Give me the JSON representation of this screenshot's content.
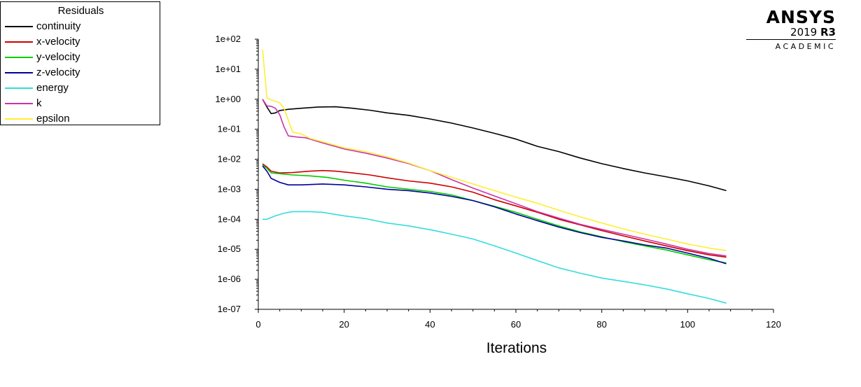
{
  "logo": {
    "brand": "ANSYS",
    "version": "2019",
    "release": "R3",
    "edition": "ACADEMIC"
  },
  "legend": {
    "title": "Residuals"
  },
  "chart_data": {
    "type": "line",
    "title": "",
    "xlabel": "Iterations",
    "ylabel": "",
    "xlim": [
      0,
      120
    ],
    "ylim": [
      1e-07,
      100
    ],
    "yscale": "log",
    "grid": false,
    "legend_position": "top-left",
    "xticks": [
      "0",
      "20",
      "40",
      "60",
      "80",
      "100",
      "120"
    ],
    "xtick_values": [
      0,
      20,
      40,
      60,
      80,
      100,
      120
    ],
    "yticks": [
      "1e-07",
      "1e-06",
      "1e-05",
      "1e-04",
      "1e-03",
      "1e-02",
      "1e-01",
      "1e+00",
      "1e+01",
      "1e+02"
    ],
    "ytick_values": [
      1e-07,
      1e-06,
      1e-05,
      0.0001,
      0.001,
      0.01,
      0.1,
      1,
      10,
      100
    ],
    "series": [
      {
        "name": "continuity",
        "color": "#000000",
        "points": [
          [
            1,
            1.0
          ],
          [
            2,
            0.55
          ],
          [
            3,
            0.33
          ],
          [
            4,
            0.35
          ],
          [
            5,
            0.42
          ],
          [
            7,
            0.46
          ],
          [
            10,
            0.5
          ],
          [
            14,
            0.55
          ],
          [
            18,
            0.56
          ],
          [
            22,
            0.5
          ],
          [
            26,
            0.43
          ],
          [
            30,
            0.35
          ],
          [
            35,
            0.29
          ],
          [
            40,
            0.22
          ],
          [
            45,
            0.16
          ],
          [
            50,
            0.11
          ],
          [
            55,
            0.073
          ],
          [
            60,
            0.047
          ],
          [
            65,
            0.027
          ],
          [
            70,
            0.018
          ],
          [
            75,
            0.011
          ],
          [
            80,
            0.0071
          ],
          [
            85,
            0.0049
          ],
          [
            90,
            0.0035
          ],
          [
            95,
            0.0026
          ],
          [
            100,
            0.0019
          ],
          [
            105,
            0.0013
          ],
          [
            109,
            0.0009
          ]
        ]
      },
      {
        "name": "x-velocity",
        "color": "#cc0000",
        "points": [
          [
            1,
            0.007
          ],
          [
            2,
            0.0055
          ],
          [
            3,
            0.004
          ],
          [
            5,
            0.0035
          ],
          [
            8,
            0.0036
          ],
          [
            12,
            0.004
          ],
          [
            15,
            0.0042
          ],
          [
            18,
            0.004
          ],
          [
            22,
            0.0035
          ],
          [
            26,
            0.003
          ],
          [
            30,
            0.0024
          ],
          [
            35,
            0.0019
          ],
          [
            40,
            0.0016
          ],
          [
            45,
            0.0012
          ],
          [
            50,
            0.0008
          ],
          [
            55,
            0.00045
          ],
          [
            60,
            0.00028
          ],
          [
            65,
            0.00017
          ],
          [
            70,
            0.0001
          ],
          [
            75,
            6.5e-05
          ],
          [
            80,
            4.2e-05
          ],
          [
            85,
            2.8e-05
          ],
          [
            90,
            1.9e-05
          ],
          [
            95,
            1.3e-05
          ],
          [
            100,
            9e-06
          ],
          [
            105,
            6.5e-06
          ],
          [
            109,
            5.5e-06
          ]
        ]
      },
      {
        "name": "y-velocity",
        "color": "#00cc00",
        "points": [
          [
            1,
            0.0065
          ],
          [
            2,
            0.005
          ],
          [
            3,
            0.0035
          ],
          [
            5,
            0.0033
          ],
          [
            8,
            0.003
          ],
          [
            12,
            0.0028
          ],
          [
            16,
            0.0025
          ],
          [
            20,
            0.002
          ],
          [
            25,
            0.0016
          ],
          [
            30,
            0.0012
          ],
          [
            35,
            0.001
          ],
          [
            40,
            0.00085
          ],
          [
            45,
            0.00065
          ],
          [
            50,
            0.00042
          ],
          [
            55,
            0.00027
          ],
          [
            60,
            0.00017
          ],
          [
            65,
            0.0001
          ],
          [
            70,
            6e-05
          ],
          [
            75,
            3.8e-05
          ],
          [
            80,
            2.6e-05
          ],
          [
            85,
            1.8e-05
          ],
          [
            90,
            1.3e-05
          ],
          [
            95,
            9.5e-06
          ],
          [
            100,
            6.5e-06
          ],
          [
            105,
            4.5e-06
          ],
          [
            109,
            3.5e-06
          ]
        ]
      },
      {
        "name": "z-velocity",
        "color": "#000099",
        "points": [
          [
            1,
            0.006
          ],
          [
            2,
            0.004
          ],
          [
            3,
            0.0023
          ],
          [
            5,
            0.0017
          ],
          [
            7,
            0.0014
          ],
          [
            10,
            0.0014
          ],
          [
            15,
            0.0015
          ],
          [
            20,
            0.0014
          ],
          [
            25,
            0.0012
          ],
          [
            30,
            0.001
          ],
          [
            35,
            0.0009
          ],
          [
            40,
            0.00075
          ],
          [
            45,
            0.00058
          ],
          [
            50,
            0.00042
          ],
          [
            55,
            0.00026
          ],
          [
            60,
            0.00015
          ],
          [
            65,
            9e-05
          ],
          [
            70,
            5.5e-05
          ],
          [
            75,
            3.6e-05
          ],
          [
            80,
            2.5e-05
          ],
          [
            85,
            1.9e-05
          ],
          [
            90,
            1.4e-05
          ],
          [
            95,
            1.1e-05
          ],
          [
            100,
            7.5e-06
          ],
          [
            105,
            5e-06
          ],
          [
            109,
            3.3e-06
          ]
        ]
      },
      {
        "name": "energy",
        "color": "#33dddd",
        "points": [
          [
            1,
            0.0001
          ],
          [
            2,
            0.0001
          ],
          [
            4,
            0.00013
          ],
          [
            6,
            0.00016
          ],
          [
            8,
            0.00018
          ],
          [
            12,
            0.00018
          ],
          [
            15,
            0.00017
          ],
          [
            20,
            0.00013
          ],
          [
            25,
            0.000105
          ],
          [
            30,
            7.5e-05
          ],
          [
            35,
            6e-05
          ],
          [
            40,
            4.5e-05
          ],
          [
            45,
            3.2e-05
          ],
          [
            50,
            2.2e-05
          ],
          [
            55,
            1.3e-05
          ],
          [
            60,
            7.5e-06
          ],
          [
            65,
            4.2e-06
          ],
          [
            70,
            2.4e-06
          ],
          [
            75,
            1.6e-06
          ],
          [
            80,
            1.1e-06
          ],
          [
            85,
            8.5e-07
          ],
          [
            90,
            6.5e-07
          ],
          [
            95,
            4.8e-07
          ],
          [
            100,
            3.3e-07
          ],
          [
            105,
            2.3e-07
          ],
          [
            109,
            1.6e-07
          ]
        ]
      },
      {
        "name": "k",
        "color": "#cc33aa",
        "points": [
          [
            1,
            1.0
          ],
          [
            2,
            0.6
          ],
          [
            3,
            0.58
          ],
          [
            4,
            0.5
          ],
          [
            5,
            0.3
          ],
          [
            6,
            0.12
          ],
          [
            7,
            0.06
          ],
          [
            9,
            0.055
          ],
          [
            11,
            0.052
          ],
          [
            15,
            0.035
          ],
          [
            20,
            0.022
          ],
          [
            25,
            0.016
          ],
          [
            30,
            0.011
          ],
          [
            35,
            0.0072
          ],
          [
            40,
            0.0042
          ],
          [
            45,
            0.0021
          ],
          [
            50,
            0.0011
          ],
          [
            55,
            0.0006
          ],
          [
            60,
            0.00033
          ],
          [
            65,
            0.00018
          ],
          [
            70,
            0.00011
          ],
          [
            75,
            6.8e-05
          ],
          [
            80,
            4.6e-05
          ],
          [
            85,
            3.2e-05
          ],
          [
            90,
            2.2e-05
          ],
          [
            95,
            1.5e-05
          ],
          [
            100,
            1e-05
          ],
          [
            105,
            7.2e-06
          ],
          [
            109,
            6e-06
          ]
        ]
      },
      {
        "name": "epsilon",
        "color": "#ffee33",
        "points": [
          [
            1,
            45
          ],
          [
            2,
            1.1
          ],
          [
            3,
            0.95
          ],
          [
            4,
            0.85
          ],
          [
            5,
            0.75
          ],
          [
            6,
            0.5
          ],
          [
            7,
            0.2
          ],
          [
            8,
            0.08
          ],
          [
            10,
            0.07
          ],
          [
            12,
            0.05
          ],
          [
            15,
            0.038
          ],
          [
            20,
            0.024
          ],
          [
            25,
            0.018
          ],
          [
            30,
            0.012
          ],
          [
            35,
            0.0075
          ],
          [
            40,
            0.0042
          ],
          [
            45,
            0.0025
          ],
          [
            50,
            0.0015
          ],
          [
            55,
            0.0009
          ],
          [
            60,
            0.00055
          ],
          [
            65,
            0.00034
          ],
          [
            70,
            0.0002
          ],
          [
            75,
            0.00012
          ],
          [
            80,
            7.5e-05
          ],
          [
            85,
            4.8e-05
          ],
          [
            90,
            3.2e-05
          ],
          [
            95,
            2.2e-05
          ],
          [
            100,
            1.5e-05
          ],
          [
            105,
            1.1e-05
          ],
          [
            109,
            9e-06
          ]
        ]
      }
    ]
  }
}
